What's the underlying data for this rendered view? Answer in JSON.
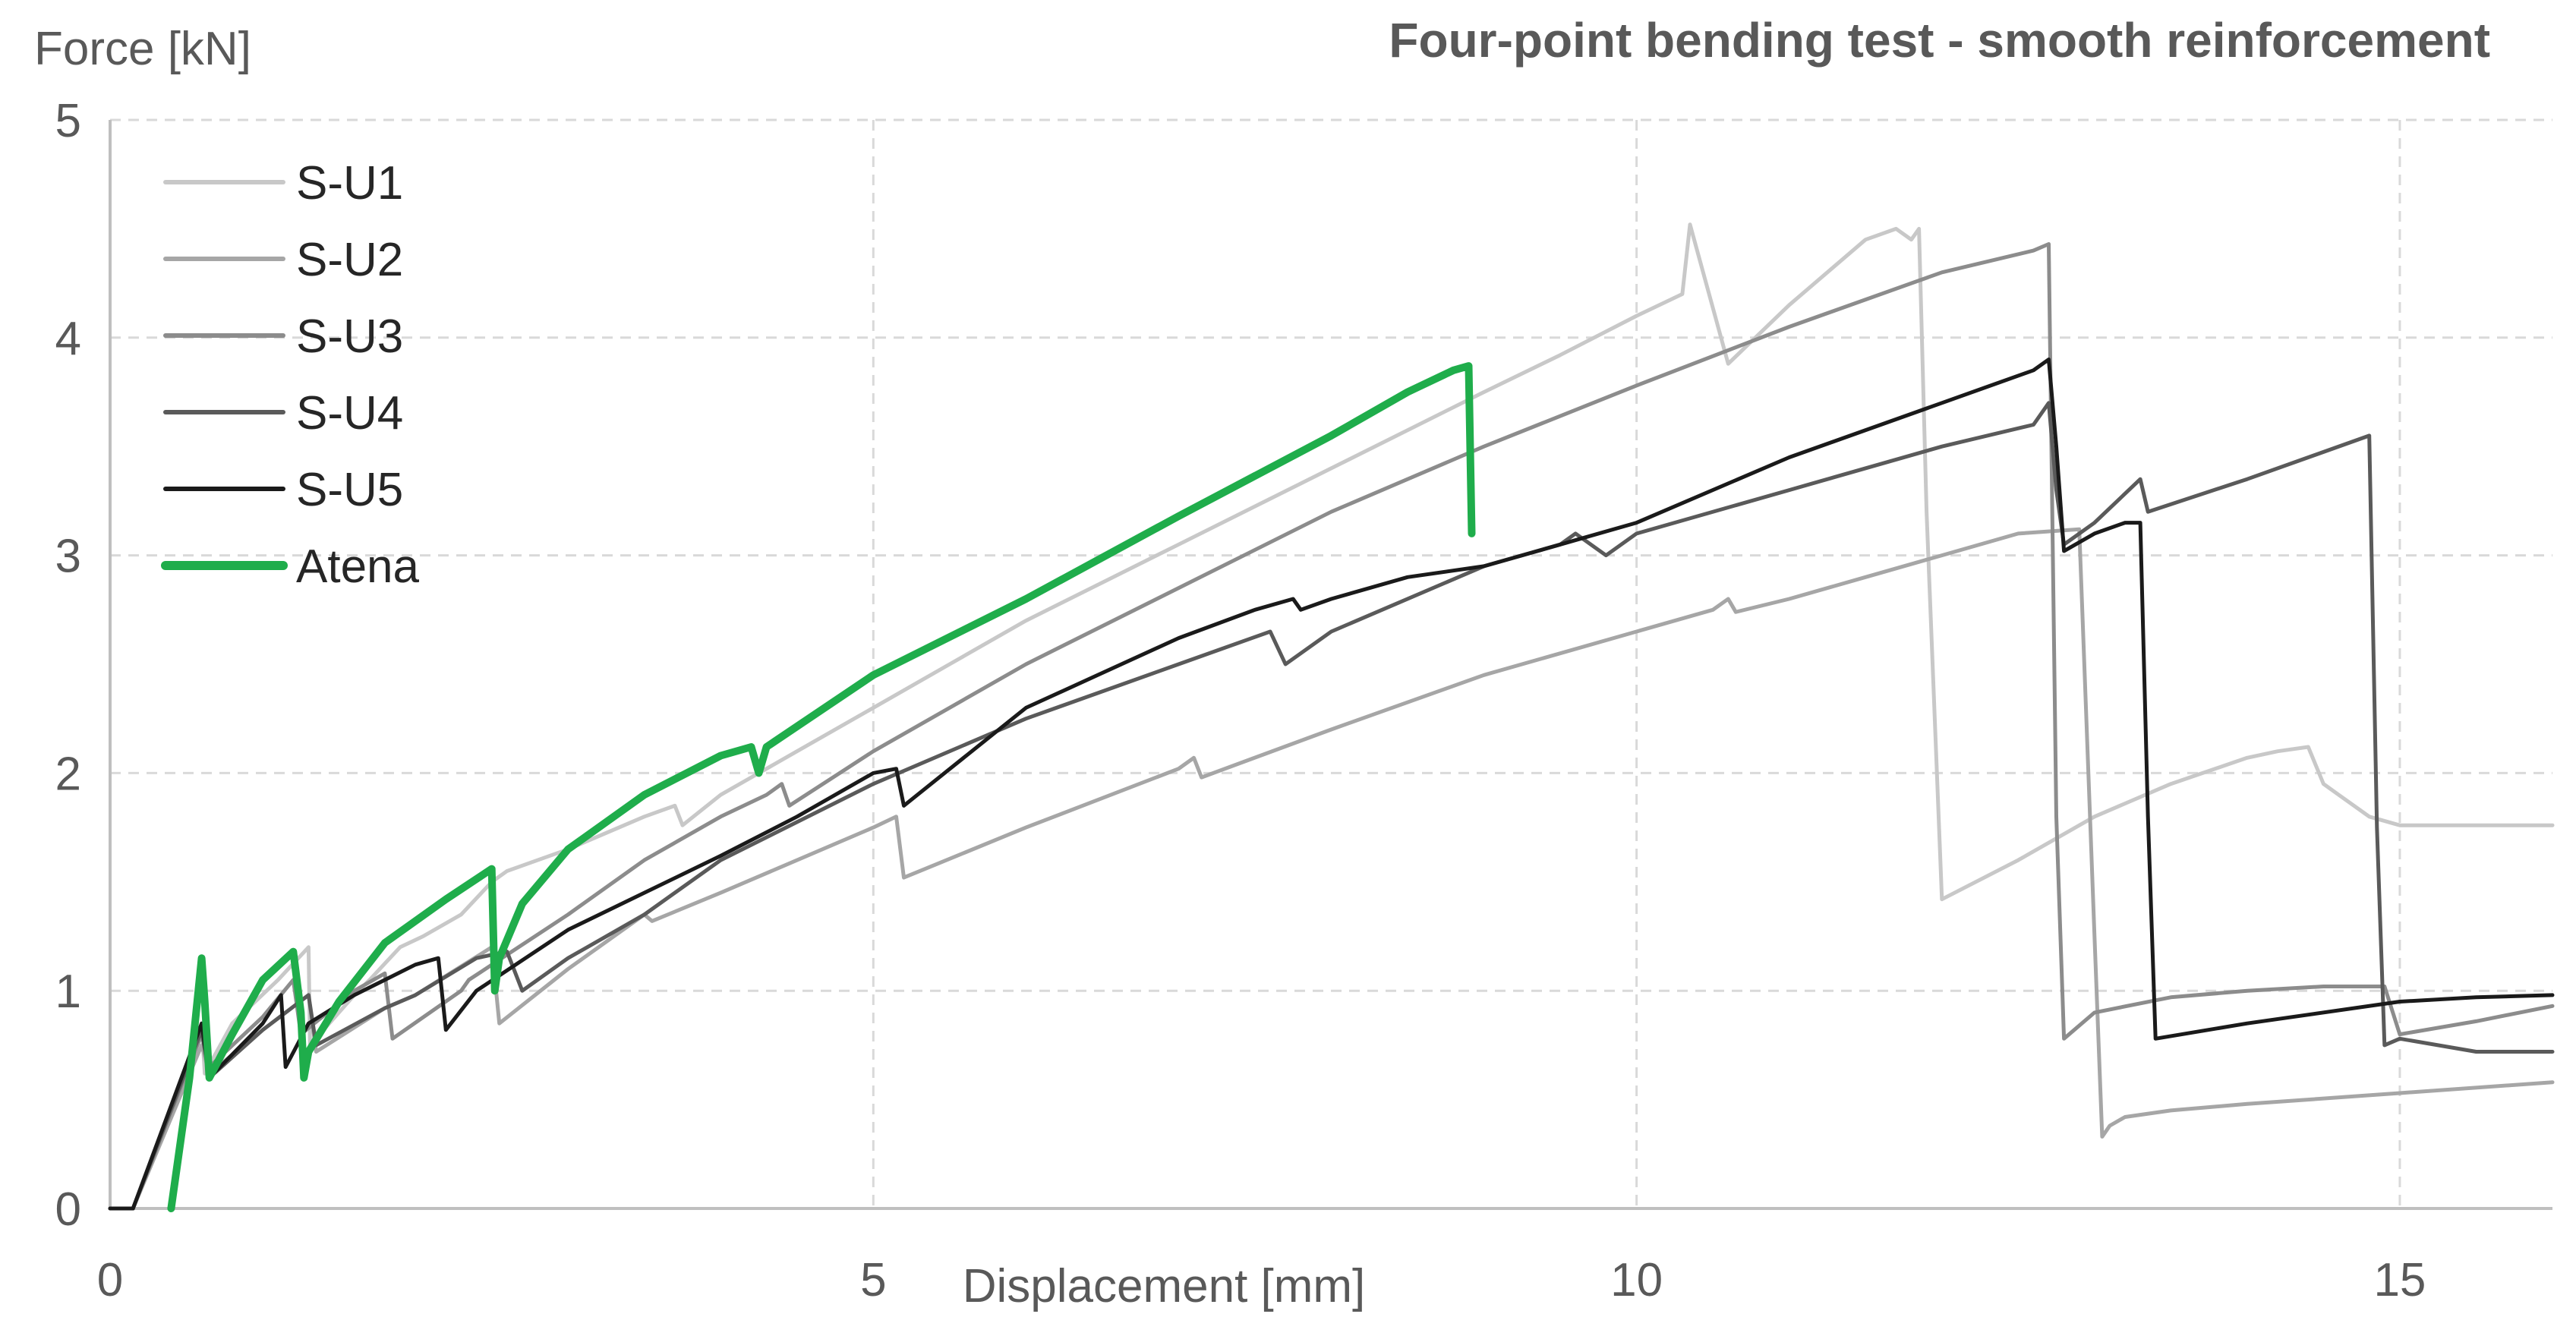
{
  "chart_data": {
    "type": "line",
    "title": "Four-point bending test - smooth reinforcement",
    "xlabel": "Displacement [mm]",
    "ylabel": "Force [kN]",
    "xlim": [
      0,
      16
    ],
    "ylim": [
      0,
      5
    ],
    "xticks": [
      0,
      5,
      10,
      15
    ],
    "yticks": [
      0,
      1,
      2,
      3,
      4,
      5
    ],
    "xtick_labels": [
      "0",
      "5",
      "10",
      "15"
    ],
    "ytick_labels": [
      "0",
      "1",
      "2",
      "3",
      "4",
      "5"
    ],
    "grid": true,
    "legend_position": "top-left",
    "series": [
      {
        "name": "S-U1",
        "color": "#c8c8c8",
        "x": [
          0,
          0.15,
          0.6,
          0.62,
          0.8,
          1.1,
          1.3,
          1.31,
          1.6,
          1.7,
          1.9,
          2.05,
          2.3,
          2.5,
          2.6,
          3.0,
          3.5,
          3.7,
          3.75,
          4.0,
          4.5,
          5.0,
          5.5,
          6.0,
          7.0,
          8.0,
          9.0,
          9.5,
          10.0,
          10.3,
          10.35,
          10.6,
          11.0,
          11.5,
          11.7,
          11.8,
          11.85,
          11.9,
          12.0,
          12.5,
          13.0,
          13.5,
          14.0,
          14.2,
          14.4,
          14.5,
          14.6,
          14.8,
          15.0,
          16.0
        ],
        "y": [
          0,
          0,
          0.85,
          0.62,
          0.85,
          1.05,
          1.2,
          0.75,
          0.98,
          1.05,
          1.2,
          1.25,
          1.35,
          1.5,
          1.55,
          1.65,
          1.8,
          1.85,
          1.76,
          1.9,
          2.1,
          2.3,
          2.5,
          2.7,
          3.05,
          3.4,
          3.75,
          3.92,
          4.1,
          4.2,
          4.52,
          3.88,
          4.15,
          4.45,
          4.5,
          4.45,
          4.5,
          3.2,
          1.42,
          1.6,
          1.8,
          1.95,
          2.07,
          2.1,
          2.12,
          1.95,
          1.9,
          1.8,
          1.76,
          1.76
        ]
      },
      {
        "name": "S-U2",
        "color": "#a6a6a6",
        "x": [
          0,
          0.15,
          0.6,
          0.65,
          1.0,
          1.3,
          1.35,
          1.8,
          2.0,
          2.5,
          2.55,
          3.0,
          3.5,
          3.55,
          4.0,
          5.0,
          5.15,
          5.2,
          6.0,
          7.0,
          7.1,
          7.15,
          8.0,
          9.0,
          10.0,
          10.5,
          10.6,
          10.65,
          11.0,
          11.5,
          12.0,
          12.5,
          12.9,
          13.0,
          13.05,
          13.1,
          13.2,
          13.5,
          14.0,
          15.0,
          16.0
        ],
        "y": [
          0,
          0,
          0.75,
          0.62,
          0.82,
          0.98,
          0.72,
          0.92,
          0.98,
          1.2,
          0.85,
          1.1,
          1.35,
          1.32,
          1.45,
          1.75,
          1.8,
          1.52,
          1.75,
          2.02,
          2.07,
          1.98,
          2.2,
          2.45,
          2.65,
          2.75,
          2.8,
          2.74,
          2.8,
          2.9,
          3.0,
          3.1,
          3.12,
          1.25,
          0.33,
          0.38,
          0.42,
          0.45,
          0.48,
          0.53,
          0.58
        ]
      },
      {
        "name": "S-U3",
        "color": "#8c8c8c",
        "x": [
          0,
          0.15,
          0.6,
          0.65,
          1.0,
          1.2,
          1.25,
          1.6,
          1.8,
          1.85,
          2.3,
          2.35,
          3.0,
          3.5,
          4.0,
          4.3,
          4.4,
          4.45,
          5.0,
          6.0,
          7.0,
          8.0,
          9.0,
          10.0,
          11.0,
          12.0,
          12.6,
          12.7,
          12.75,
          12.8,
          13.0,
          13.5,
          14.0,
          14.5,
          14.9,
          15.0,
          15.5,
          16.0
        ],
        "y": [
          0,
          0,
          0.8,
          0.65,
          0.88,
          1.05,
          0.8,
          1.0,
          1.08,
          0.78,
          1.0,
          1.05,
          1.35,
          1.6,
          1.8,
          1.9,
          1.95,
          1.85,
          2.1,
          2.5,
          2.85,
          3.2,
          3.5,
          3.78,
          4.05,
          4.3,
          4.4,
          4.43,
          1.8,
          0.78,
          0.9,
          0.97,
          1.0,
          1.02,
          1.02,
          0.8,
          0.86,
          0.93
        ]
      },
      {
        "name": "S-U4",
        "color": "#5a5a5a",
        "x": [
          0,
          0.15,
          0.6,
          0.65,
          1.0,
          1.3,
          1.35,
          1.8,
          2.0,
          2.4,
          2.6,
          2.7,
          3.0,
          3.5,
          4.0,
          5.0,
          6.0,
          7.0,
          7.6,
          7.7,
          8.0,
          9.0,
          9.5,
          9.6,
          9.8,
          10.0,
          11.0,
          12.0,
          12.6,
          12.7,
          12.75,
          12.8,
          13.0,
          13.3,
          13.35,
          14.0,
          14.8,
          14.85,
          14.9,
          15.0,
          15.5,
          16.0
        ],
        "y": [
          0,
          0,
          0.82,
          0.6,
          0.82,
          0.98,
          0.75,
          0.92,
          0.98,
          1.15,
          1.18,
          1.0,
          1.15,
          1.35,
          1.6,
          1.95,
          2.25,
          2.5,
          2.65,
          2.5,
          2.65,
          2.95,
          3.05,
          3.1,
          3.0,
          3.1,
          3.3,
          3.5,
          3.6,
          3.7,
          3.3,
          3.05,
          3.15,
          3.35,
          3.2,
          3.35,
          3.55,
          1.75,
          0.75,
          0.78,
          0.72,
          0.72
        ]
      },
      {
        "name": "S-U5",
        "color": "#1a1a1a",
        "x": [
          0,
          0.15,
          0.6,
          0.65,
          1.0,
          1.12,
          1.15,
          1.3,
          1.6,
          2.0,
          2.15,
          2.2,
          2.4,
          3.0,
          3.5,
          4.0,
          4.5,
          5.0,
          5.15,
          5.2,
          6.0,
          7.0,
          7.5,
          7.75,
          7.8,
          8.0,
          8.5,
          9.0,
          9.5,
          10.0,
          11.0,
          12.0,
          12.6,
          12.7,
          12.75,
          12.8,
          13.0,
          13.2,
          13.3,
          13.35,
          13.4,
          14.0,
          15.0,
          15.5,
          16.0
        ],
        "y": [
          0,
          0,
          0.85,
          0.6,
          0.85,
          0.98,
          0.65,
          0.85,
          0.98,
          1.12,
          1.15,
          0.82,
          1.0,
          1.28,
          1.45,
          1.62,
          1.8,
          2.0,
          2.02,
          1.85,
          2.3,
          2.62,
          2.75,
          2.8,
          2.75,
          2.8,
          2.9,
          2.95,
          3.05,
          3.15,
          3.45,
          3.7,
          3.85,
          3.9,
          3.5,
          3.02,
          3.1,
          3.15,
          3.15,
          1.8,
          0.78,
          0.85,
          0.95,
          0.97,
          0.98
        ]
      },
      {
        "name": "Atena",
        "color": "#1fad4b",
        "x": [
          0.4,
          0.52,
          0.6,
          0.62,
          0.65,
          0.8,
          1.0,
          1.2,
          1.25,
          1.27,
          1.3,
          1.5,
          1.8,
          2.2,
          2.5,
          2.52,
          2.55,
          2.7,
          3.0,
          3.5,
          4.0,
          4.2,
          4.25,
          4.3,
          5.0,
          6.0,
          7.0,
          8.0,
          8.5,
          8.8,
          8.9,
          8.92
        ],
        "y": [
          0,
          0.6,
          1.15,
          0.95,
          0.6,
          0.8,
          1.05,
          1.18,
          0.9,
          0.6,
          0.72,
          0.95,
          1.22,
          1.42,
          1.56,
          1.0,
          1.15,
          1.4,
          1.65,
          1.9,
          2.08,
          2.12,
          2.0,
          2.12,
          2.45,
          2.8,
          3.18,
          3.55,
          3.75,
          3.85,
          3.87,
          3.1
        ]
      }
    ]
  }
}
